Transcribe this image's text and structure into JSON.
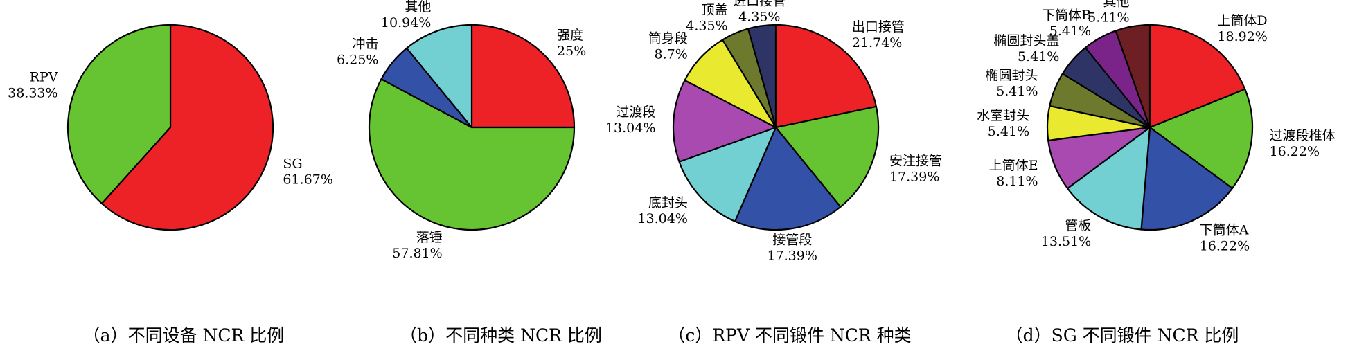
{
  "chart_data": [
    {
      "type": "pie",
      "caption": "（a）不同设备 NCR 比例",
      "slices": [
        {
          "name": "SG",
          "value": 61.67,
          "label": "61.67%",
          "color": "#ec2227"
        },
        {
          "name": "RPV",
          "value": 38.33,
          "label": "38.33%",
          "color": "#66c331"
        }
      ]
    },
    {
      "type": "pie",
      "caption": "（b）不同种类 NCR 比例",
      "slices": [
        {
          "name": "强度",
          "value": 25,
          "label": "25%",
          "color": "#ec2227"
        },
        {
          "name": "落锤",
          "value": 57.81,
          "label": "57.81%",
          "color": "#66c331"
        },
        {
          "name": "冲击",
          "value": 6.25,
          "label": "6.25%",
          "color": "#3351a6"
        },
        {
          "name": "其他",
          "value": 10.94,
          "label": "10.94%",
          "color": "#72d0d3"
        }
      ]
    },
    {
      "type": "pie",
      "caption": "（c）RPV 不同锻件 NCR 种类",
      "slices": [
        {
          "name": "出口接管",
          "value": 21.74,
          "label": "21.74%",
          "color": "#ec2227"
        },
        {
          "name": "安注接管",
          "value": 17.39,
          "label": "17.39%",
          "color": "#66c331"
        },
        {
          "name": "接管段",
          "value": 17.39,
          "label": "17.39%",
          "color": "#3351a6"
        },
        {
          "name": "底封头",
          "value": 13.04,
          "label": "13.04%",
          "color": "#72d0d3"
        },
        {
          "name": "过渡段",
          "value": 13.04,
          "label": "13.04%",
          "color": "#a84ab0"
        },
        {
          "name": "筒身段",
          "value": 8.7,
          "label": "8.7%",
          "color": "#e9ea2f"
        },
        {
          "name": "顶盖",
          "value": 4.35,
          "label": "4.35%",
          "color": "#6d7a2e"
        },
        {
          "name": "进口接管",
          "value": 4.35,
          "label": "4.35%",
          "color": "#2e3566"
        }
      ]
    },
    {
      "type": "pie",
      "caption": "（d）SG 不同锻件 NCR 比例",
      "slices": [
        {
          "name": "上筒体D",
          "value": 18.92,
          "label": "18.92%",
          "color": "#ec2227"
        },
        {
          "name": "过渡段椎体",
          "value": 16.22,
          "label": "16.22%",
          "color": "#66c331"
        },
        {
          "name": "下筒体A",
          "value": 16.22,
          "label": "16.22%",
          "color": "#3351a6"
        },
        {
          "name": "管板",
          "value": 13.51,
          "label": "13.51%",
          "color": "#72d0d3"
        },
        {
          "name": "上筒体E",
          "value": 8.11,
          "label": "8.11%",
          "color": "#a84ab0"
        },
        {
          "name": "水室封头",
          "value": 5.41,
          "label": "5.41%",
          "color": "#e9ea2f"
        },
        {
          "name": "椭圆封头",
          "value": 5.41,
          "label": "5.41%",
          "color": "#6d7a2e"
        },
        {
          "name": "椭圆封头盖",
          "value": 5.41,
          "label": "5.41%",
          "color": "#2e3566"
        },
        {
          "name": "下筒体B",
          "value": 5.41,
          "label": "5.41%",
          "color": "#7a2389"
        },
        {
          "name": "其他",
          "value": 5.41,
          "label": "5.41%",
          "color": "#6e1f24"
        }
      ]
    }
  ]
}
